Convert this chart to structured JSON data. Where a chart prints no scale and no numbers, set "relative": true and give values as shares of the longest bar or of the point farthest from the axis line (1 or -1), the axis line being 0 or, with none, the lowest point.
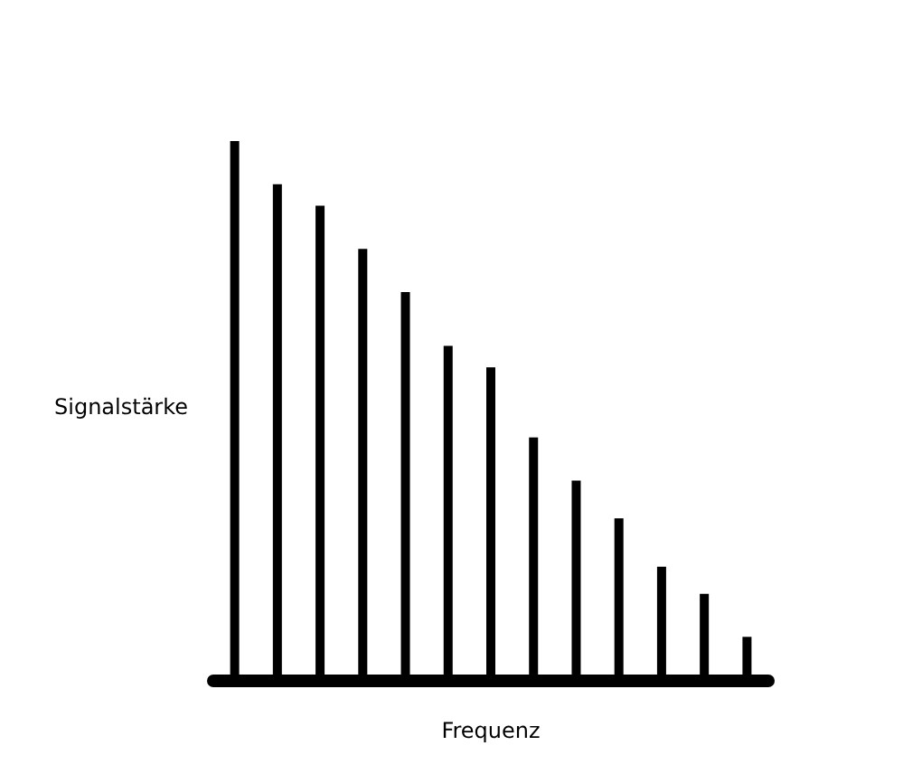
{
  "chart_data": {
    "type": "bar",
    "relative": true,
    "xlabel": "Frequenz",
    "ylabel": "Signalstärke",
    "color": "#000000",
    "categories": [
      null,
      null,
      null,
      null,
      null,
      null,
      null,
      null,
      null,
      null,
      null,
      null,
      null
    ],
    "values": [
      1,
      0.92,
      0.88,
      0.8,
      0.72,
      0.62,
      0.58,
      0.45,
      0.37,
      0.3,
      0.21,
      0.16,
      0.08
    ]
  }
}
